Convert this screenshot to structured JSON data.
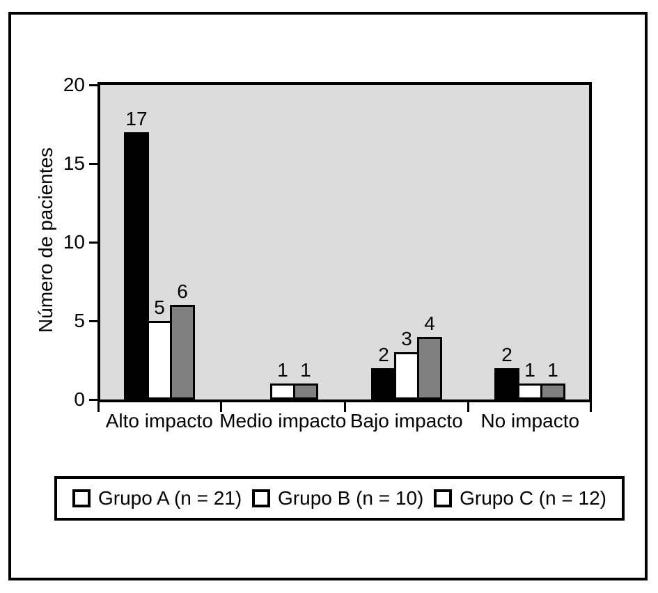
{
  "figure": {
    "background": "#ffffff",
    "frame_border_color": "#000000"
  },
  "chart_data": {
    "type": "bar",
    "title": "",
    "xlabel": "",
    "ylabel": "Número de pacientes",
    "categories": [
      "Alto impacto",
      "Medio impacto",
      "Bajo impacto",
      "No impacto"
    ],
    "series": [
      {
        "name": "Grupo A (n = 21)",
        "color": "#000000",
        "values": [
          17,
          0,
          2,
          2
        ]
      },
      {
        "name": "Grupo B (n = 10)",
        "color": "#ffffff",
        "values": [
          5,
          1,
          3,
          1
        ]
      },
      {
        "name": "Grupo C (n = 12)",
        "color": "#808080",
        "values": [
          6,
          1,
          4,
          1
        ]
      }
    ],
    "ylim": [
      0,
      20
    ],
    "yticks": [
      0,
      5,
      10,
      15,
      20
    ],
    "data_labels": true,
    "hide_zero_bars": true,
    "grid": false,
    "plot_background": "#dcdcdc",
    "axis_color": "#000000",
    "bar_border_color": "#000000",
    "legend": {
      "position": "bottom",
      "swatch_fill": "#ffffff",
      "border_color": "#000000"
    }
  }
}
